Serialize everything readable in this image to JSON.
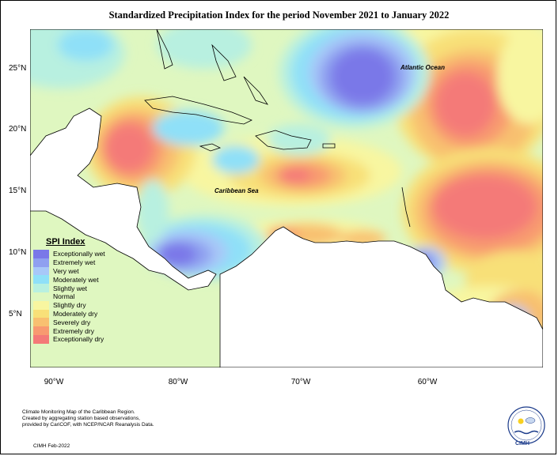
{
  "title": "Standardized Precipitation Index for the period November 2021 to January 2022",
  "axes": {
    "lat_labels": [
      "25°N",
      "20°N",
      "15°N",
      "10°N",
      "5°N"
    ],
    "lon_labels": [
      "90°W",
      "80°W",
      "70°W",
      "60°W"
    ]
  },
  "map_labels": {
    "atlantic": "Atlantic Ocean",
    "caribbean": "Caribbean Sea"
  },
  "legend": {
    "title": "SPI Index",
    "items": [
      {
        "label": "Exceptionally wet",
        "color": "#7a78e8"
      },
      {
        "label": "Extremely wet",
        "color": "#8fa0f0"
      },
      {
        "label": "Very wet",
        "color": "#a8c8f8"
      },
      {
        "label": "Moderately wet",
        "color": "#8fe0f8"
      },
      {
        "label": "Slightly wet",
        "color": "#b8f0e0"
      },
      {
        "label": "Normal",
        "color": "#dff7c0"
      },
      {
        "label": "Slightly dry",
        "color": "#f8f6a0"
      },
      {
        "label": "Moderately dry",
        "color": "#f8e078"
      },
      {
        "label": "Severely dry",
        "color": "#f8c070"
      },
      {
        "label": "Extremely dry",
        "color": "#f89a70"
      },
      {
        "label": "Exceptionally dry",
        "color": "#f47a78"
      }
    ]
  },
  "credits": {
    "line1": "Climate Monitoring Map of the Caribbean Region.",
    "line2": "Created by aggregating station based observations,",
    "line3": "provided by CariCOF, with NCEP/NCAR Reanalysis Data.",
    "date": "CIMH Feb-2022"
  },
  "logo": {
    "text": "CIMH"
  }
}
